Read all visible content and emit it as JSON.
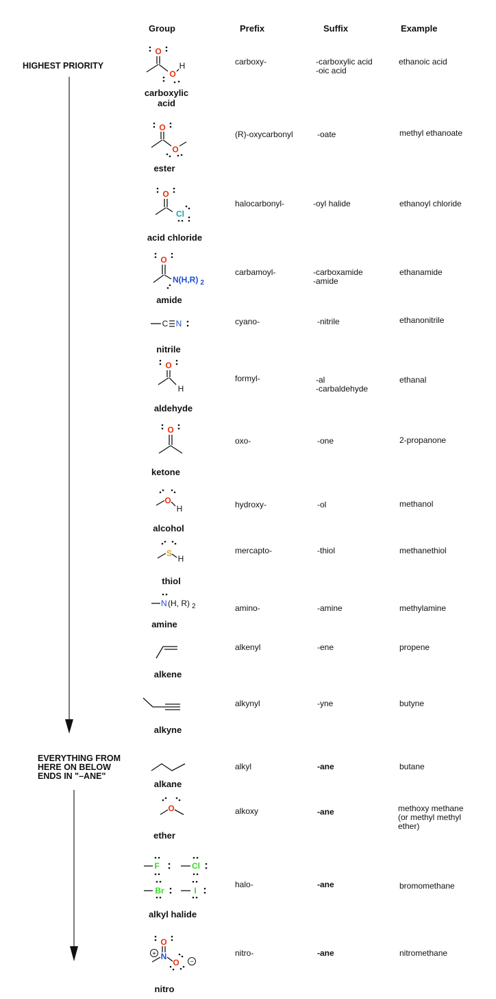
{
  "headers": {
    "group": "Group",
    "prefix": "Prefix",
    "suffix": "Suffix",
    "example": "Example"
  },
  "sidebar": {
    "highest_priority": "HIGHEST PRIORITY",
    "everything_below": [
      "EVERYTHING FROM",
      "HERE ON BELOW",
      "ENDS IN \"–ANE\""
    ]
  },
  "atoms": {
    "O": "O",
    "H": "H",
    "C": "C",
    "N": "N",
    "S": "S",
    "Cl": "Cl",
    "F": "F",
    "Br": "Br",
    "I": "I",
    "amide_n": "N(H,R)",
    "amine_n": "N",
    "amine_rest": "(H, R)",
    "sub2": "2",
    "plus": "+",
    "minus": "−"
  },
  "colors": {
    "oxygen": "#e8300c",
    "nitrogen": "#1b4fd6",
    "chlorine": "#1aa3a0",
    "sulfur": "#d9a21b",
    "halogen": "#33dd22"
  },
  "rows": [
    {
      "group": [
        "carboxylic",
        "acid"
      ],
      "prefix": [
        "carboxy-"
      ],
      "suffix": [
        "-carboxylic acid",
        "-oic acid"
      ],
      "example": [
        "ethanoic acid"
      ]
    },
    {
      "group": [
        "ester"
      ],
      "prefix": [
        "(R)-oxycarbonyl"
      ],
      "suffix": [
        "-oate"
      ],
      "example": [
        "methyl ethanoate"
      ]
    },
    {
      "group": [
        "acid chloride"
      ],
      "prefix": [
        "halocarbonyl-"
      ],
      "suffix": [
        "-oyl halide"
      ],
      "example": [
        "ethanoyl chloride"
      ]
    },
    {
      "group": [
        "amide"
      ],
      "prefix": [
        "carbamoyl-"
      ],
      "suffix": [
        "-carboxamide",
        "-amide"
      ],
      "example": [
        "ethanamide"
      ]
    },
    {
      "group": [
        "nitrile"
      ],
      "prefix": [
        "cyano-"
      ],
      "suffix": [
        "-nitrile"
      ],
      "example": [
        "ethanonitrile"
      ]
    },
    {
      "group": [
        "aldehyde"
      ],
      "prefix": [
        "formyl-"
      ],
      "suffix": [
        "-al",
        "-carbaldehyde"
      ],
      "example": [
        "ethanal"
      ]
    },
    {
      "group": [
        "ketone"
      ],
      "prefix": [
        "oxo-"
      ],
      "suffix": [
        "-one"
      ],
      "example": [
        "2-propanone"
      ]
    },
    {
      "group": [
        "alcohol"
      ],
      "prefix": [
        "hydroxy-"
      ],
      "suffix": [
        "-ol"
      ],
      "example": [
        "methanol"
      ]
    },
    {
      "group": [
        "thiol"
      ],
      "prefix": [
        "mercapto-"
      ],
      "suffix": [
        "-thiol"
      ],
      "example": [
        "methanethiol"
      ]
    },
    {
      "group": [
        "amine"
      ],
      "prefix": [
        "amino-"
      ],
      "suffix": [
        "-amine"
      ],
      "example": [
        "methylamine"
      ]
    },
    {
      "group": [
        "alkene"
      ],
      "prefix": [
        "alkenyl"
      ],
      "suffix": [
        "-ene"
      ],
      "example": [
        "propene"
      ]
    },
    {
      "group": [
        "alkyne"
      ],
      "prefix": [
        "alkynyl"
      ],
      "suffix": [
        "-yne"
      ],
      "example": [
        "butyne"
      ]
    },
    {
      "group": [
        "alkane"
      ],
      "prefix": [
        "alkyl"
      ],
      "suffix": [
        "-ane"
      ],
      "example": [
        "butane"
      ]
    },
    {
      "group": [
        "ether"
      ],
      "prefix": [
        "alkoxy"
      ],
      "suffix": [
        "-ane"
      ],
      "example": [
        "methoxy methane",
        "(or methyl methyl",
        "ether)"
      ]
    },
    {
      "group": [
        "alkyl halide"
      ],
      "prefix": [
        "halo-"
      ],
      "suffix": [
        "-ane"
      ],
      "example": [
        "bromomethane"
      ]
    },
    {
      "group": [
        "nitro"
      ],
      "prefix": [
        "nitro-"
      ],
      "suffix": [
        "-ane"
      ],
      "example": [
        "nitromethane"
      ]
    }
  ]
}
